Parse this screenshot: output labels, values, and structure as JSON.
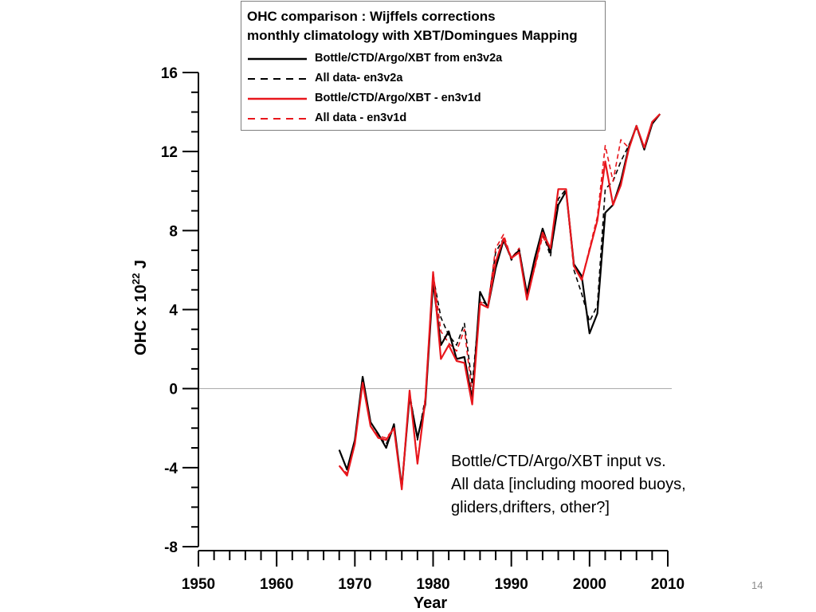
{
  "page": {
    "number": "14"
  },
  "legend": {
    "title_lines": [
      "OHC comparison : Wijffels corrections",
      "monthly climatology with XBT/Domingues Mapping"
    ]
  },
  "annotation": {
    "lines": [
      "Bottle/CTD/Argo/XBT input vs.",
      "All data [including moored buoys,",
      "gliders,drifters, other?]"
    ]
  },
  "chart_data": {
    "type": "line",
    "xlabel": "Year",
    "ylabel_prefix": "OHC x 10",
    "ylabel_exponent": "22",
    "ylabel_suffix": " J",
    "xlim": [
      1950,
      2010
    ],
    "ylim": [
      -8,
      16
    ],
    "xticks": [
      1950,
      1960,
      1970,
      1980,
      1990,
      2000,
      2010
    ],
    "yticks": [
      16,
      12,
      8,
      4,
      0,
      -4,
      -8
    ],
    "grid": false,
    "zero_line": true,
    "legend_placement": "top",
    "series": [
      {
        "name": "Bottle/CTD/Argo/XBT from en3v2a",
        "color": "#000000",
        "dash": "solid",
        "x": [
          1968,
          1969,
          1970,
          1971,
          1972,
          1973,
          1974,
          1975,
          1976,
          1977,
          1978,
          1979,
          1980,
          1981,
          1982,
          1983,
          1984,
          1985,
          1986,
          1987,
          1988,
          1989,
          1990,
          1991,
          1992,
          1993,
          1994,
          1995,
          1996,
          1997,
          1998,
          1999,
          2000,
          2001,
          2002,
          2003,
          2004,
          2005,
          2006,
          2007,
          2008,
          2009
        ],
        "y": [
          -3.1,
          -4.1,
          -2.6,
          0.6,
          -1.7,
          -2.3,
          -3.0,
          -1.8,
          -5.0,
          -0.4,
          -2.5,
          -0.8,
          5.4,
          2.2,
          2.9,
          1.5,
          1.6,
          -0.6,
          4.9,
          4.1,
          6.1,
          7.5,
          6.6,
          7.0,
          4.8,
          6.6,
          8.1,
          6.9,
          9.3,
          10.0,
          6.3,
          5.7,
          2.8,
          3.8,
          8.9,
          9.3,
          10.5,
          12.2,
          13.3,
          12.1,
          13.4,
          13.9
        ]
      },
      {
        "name": "All data- en3v2a",
        "color": "#000000",
        "dash": "dashed",
        "x": [
          1968,
          1969,
          1970,
          1971,
          1972,
          1973,
          1974,
          1975,
          1976,
          1977,
          1978,
          1979,
          1980,
          1981,
          1982,
          1983,
          1984,
          1985,
          1986,
          1987,
          1988,
          1989,
          1990,
          1991,
          1992,
          1993,
          1994,
          1995,
          1996,
          1997,
          1998,
          1999,
          2000,
          2001,
          2002,
          2003,
          2004,
          2005,
          2006,
          2007,
          2008,
          2009
        ],
        "y": [
          -3.9,
          -4.3,
          -2.7,
          0.4,
          -1.9,
          -2.4,
          -2.8,
          -2.0,
          -5.1,
          -0.2,
          -2.6,
          -0.5,
          5.7,
          3.6,
          2.7,
          2.2,
          3.3,
          0.2,
          4.5,
          4.2,
          6.9,
          7.6,
          6.5,
          7.1,
          4.6,
          6.3,
          7.9,
          6.7,
          9.6,
          10.1,
          6.0,
          4.8,
          3.4,
          4.2,
          10.1,
          10.5,
          11.5,
          12.3,
          13.2,
          12.2,
          13.5,
          13.9
        ]
      },
      {
        "name": "Bottle/CTD/Argo/XBT - en3v1d",
        "color": "#e8161c",
        "dash": "solid",
        "x": [
          1968,
          1969,
          1970,
          1971,
          1972,
          1973,
          1974,
          1975,
          1976,
          1977,
          1978,
          1979,
          1980,
          1981,
          1982,
          1983,
          1984,
          1985,
          1986,
          1987,
          1988,
          1989,
          1990,
          1991,
          1992,
          1993,
          1994,
          1995,
          1996,
          1997,
          1998,
          1999,
          2000,
          2001,
          2002,
          2003,
          2004,
          2005,
          2006,
          2007,
          2008,
          2009
        ],
        "y": [
          -3.9,
          -4.4,
          -2.8,
          0.3,
          -1.9,
          -2.5,
          -2.6,
          -2.0,
          -5.1,
          -0.1,
          -3.8,
          -0.6,
          5.9,
          1.5,
          2.2,
          1.4,
          1.3,
          -0.8,
          4.3,
          4.1,
          6.4,
          7.6,
          6.6,
          6.9,
          4.5,
          6.2,
          7.9,
          7.1,
          10.1,
          10.1,
          6.2,
          5.5,
          7.0,
          8.5,
          11.5,
          9.3,
          10.3,
          12.1,
          13.3,
          12.2,
          13.5,
          13.9
        ]
      },
      {
        "name": "All data -  en3v1d",
        "color": "#e8161c",
        "dash": "dashed",
        "x": [
          1968,
          1969,
          1970,
          1971,
          1972,
          1973,
          1974,
          1975,
          1976,
          1977,
          1978,
          1979,
          1980,
          1981,
          1982,
          1983,
          1984,
          1985,
          1986,
          1987,
          1988,
          1989,
          1990,
          1991,
          1992,
          1993,
          1994,
          1995,
          1996,
          1997,
          1998,
          1999,
          2000,
          2001,
          2002,
          2003,
          2004,
          2005,
          2006,
          2007,
          2008,
          2009
        ],
        "y": [
          -3.9,
          -4.3,
          -2.7,
          0.4,
          -1.9,
          -2.4,
          -2.5,
          -2.0,
          -5.0,
          -0.1,
          -3.7,
          -0.5,
          5.9,
          2.9,
          2.3,
          1.9,
          3.0,
          -0.3,
          4.4,
          4.2,
          7.1,
          7.8,
          6.6,
          7.1,
          4.7,
          6.1,
          7.7,
          7.0,
          10.1,
          10.1,
          6.3,
          5.5,
          7.1,
          8.7,
          12.3,
          10.5,
          12.6,
          12.2,
          13.3,
          12.2,
          13.5,
          13.9
        ]
      }
    ]
  }
}
